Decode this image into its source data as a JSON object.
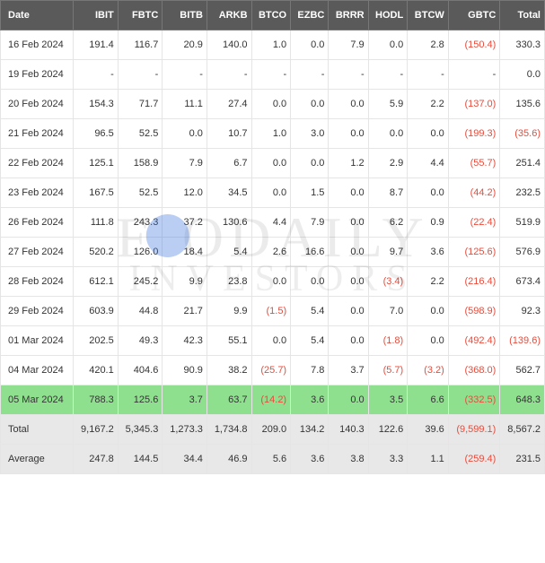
{
  "columns": [
    "Date",
    "IBIT",
    "FBTC",
    "BITB",
    "ARKB",
    "BTCO",
    "EZBC",
    "BRRR",
    "HODL",
    "BTCW",
    "GBTC",
    "Total"
  ],
  "rows": [
    {
      "date": "16 Feb 2024",
      "vals": [
        "191.4",
        "116.7",
        "20.9",
        "140.0",
        "1.0",
        "0.0",
        "7.9",
        "0.0",
        "2.8",
        "(150.4)",
        "330.3"
      ]
    },
    {
      "date": "19 Feb 2024",
      "vals": [
        "-",
        "-",
        "-",
        "-",
        "-",
        "-",
        "-",
        "-",
        "-",
        "-",
        "0.0"
      ]
    },
    {
      "date": "20 Feb 2024",
      "vals": [
        "154.3",
        "71.7",
        "11.1",
        "27.4",
        "0.0",
        "0.0",
        "0.0",
        "5.9",
        "2.2",
        "(137.0)",
        "135.6"
      ]
    },
    {
      "date": "21 Feb 2024",
      "vals": [
        "96.5",
        "52.5",
        "0.0",
        "10.7",
        "1.0",
        "3.0",
        "0.0",
        "0.0",
        "0.0",
        "(199.3)",
        "(35.6)"
      ]
    },
    {
      "date": "22 Feb 2024",
      "vals": [
        "125.1",
        "158.9",
        "7.9",
        "6.7",
        "0.0",
        "0.0",
        "1.2",
        "2.9",
        "4.4",
        "(55.7)",
        "251.4"
      ]
    },
    {
      "date": "23 Feb 2024",
      "vals": [
        "167.5",
        "52.5",
        "12.0",
        "34.5",
        "0.0",
        "1.5",
        "0.0",
        "8.7",
        "0.0",
        "(44.2)",
        "232.5"
      ]
    },
    {
      "date": "26 Feb 2024",
      "vals": [
        "111.8",
        "243.3",
        "37.2",
        "130.6",
        "4.4",
        "7.9",
        "0.0",
        "6.2",
        "0.9",
        "(22.4)",
        "519.9"
      ]
    },
    {
      "date": "27 Feb 2024",
      "vals": [
        "520.2",
        "126.0",
        "18.4",
        "5.4",
        "2.6",
        "16.6",
        "0.0",
        "9.7",
        "3.6",
        "(125.6)",
        "576.9"
      ]
    },
    {
      "date": "28 Feb 2024",
      "vals": [
        "612.1",
        "245.2",
        "9.9",
        "23.8",
        "0.0",
        "0.0",
        "0.0",
        "(3.4)",
        "2.2",
        "(216.4)",
        "673.4"
      ]
    },
    {
      "date": "29 Feb 2024",
      "vals": [
        "603.9",
        "44.8",
        "21.7",
        "9.9",
        "(1.5)",
        "5.4",
        "0.0",
        "7.0",
        "0.0",
        "(598.9)",
        "92.3"
      ]
    },
    {
      "date": "01 Mar 2024",
      "vals": [
        "202.5",
        "49.3",
        "42.3",
        "55.1",
        "0.0",
        "5.4",
        "0.0",
        "(1.8)",
        "0.0",
        "(492.4)",
        "(139.6)"
      ]
    },
    {
      "date": "04 Mar 2024",
      "vals": [
        "420.1",
        "404.6",
        "90.9",
        "38.2",
        "(25.7)",
        "7.8",
        "3.7",
        "(5.7)",
        "(3.2)",
        "(368.0)",
        "562.7"
      ]
    },
    {
      "date": "05 Mar 2024",
      "vals": [
        "788.3",
        "125.6",
        "3.7",
        "63.7",
        "(14.2)",
        "3.6",
        "0.0",
        "3.5",
        "6.6",
        "(332.5)",
        "648.3"
      ],
      "highlight": true
    }
  ],
  "total": {
    "label": "Total",
    "vals": [
      "9,167.2",
      "5,345.3",
      "1,273.3",
      "1,734.8",
      "209.0",
      "134.2",
      "140.3",
      "122.6",
      "39.6",
      "(9,599.1)",
      "8,567.2"
    ]
  },
  "average": {
    "label": "Average",
    "vals": [
      "247.8",
      "144.5",
      "34.4",
      "46.9",
      "5.6",
      "3.6",
      "3.8",
      "3.3",
      "1.1",
      "(259.4)",
      "231.5"
    ]
  },
  "watermark_top": "F    ODAILY",
  "watermark_bottom": "INVESTORS"
}
